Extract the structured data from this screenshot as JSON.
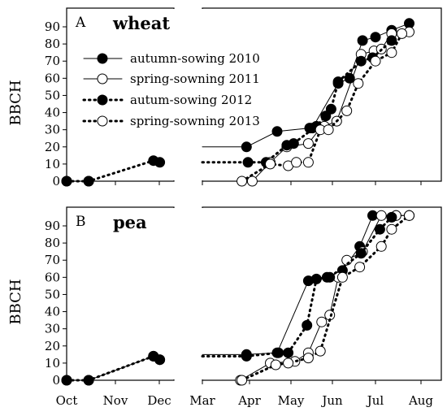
{
  "figure": {
    "ylabel": "BBCH",
    "x_ticks": [
      "Oct",
      "Nov",
      "Dec",
      "Mar",
      "Apr",
      "May",
      "Jun",
      "Jul",
      "Aug"
    ],
    "y_ticks": [
      "0",
      "10",
      "20",
      "30",
      "40",
      "50",
      "60",
      "70",
      "80",
      "90"
    ],
    "legend": [
      {
        "label": "autumn-sowing 2010",
        "style": "solid",
        "marker": "filled"
      },
      {
        "label": "spring-sowning 2011",
        "style": "solid",
        "marker": "open"
      },
      {
        "label": "autum-sowing 2012",
        "style": "dotted",
        "marker": "filled"
      },
      {
        "label": "spring-sowning 2013",
        "style": "dotted",
        "marker": "open"
      }
    ]
  },
  "chart_data": [
    {
      "type": "line",
      "panel": "A",
      "title": "wheat",
      "ylabel": "BBCH",
      "ylim": [
        0,
        95
      ],
      "x_axis": "date (month-day)",
      "series": [
        {
          "name": "autumn-sowing 2010",
          "style": "solid",
          "marker": "filled",
          "x": [
            "10-01",
            "10-15",
            "03-30",
            "04-21",
            "05-15",
            "05-17",
            "06-05",
            "06-13",
            "06-22",
            "07-01",
            "07-12",
            "07-24"
          ],
          "y": [
            0,
            0,
            20,
            29,
            31,
            31,
            57,
            60,
            82,
            84,
            88,
            92
          ]
        },
        {
          "name": "spring-sowning 2011",
          "style": "solid",
          "marker": "open",
          "x": [
            "04-03",
            "04-16",
            "04-28",
            "05-14",
            "05-23",
            "05-26",
            "06-04",
            "06-21",
            "06-30",
            "07-05",
            "07-12",
            "07-24"
          ],
          "y": [
            0,
            11,
            20,
            22,
            31,
            32,
            35,
            74,
            76,
            77,
            86,
            87
          ]
        },
        {
          "name": "autum-sowing 2012",
          "style": "dotted",
          "marker": "filled",
          "x": [
            "10-01",
            "10-15",
            "11-27",
            "12-02",
            "03-31",
            "04-13",
            "04-28",
            "05-03",
            "05-20",
            "05-27",
            "05-31",
            "06-05",
            "06-21",
            "06-29",
            "07-12"
          ],
          "y": [
            0,
            0,
            12,
            11,
            11,
            11,
            21,
            22,
            32,
            38,
            42,
            58,
            70,
            72,
            82
          ]
        },
        {
          "name": "spring-sowning 2013",
          "style": "dotted",
          "marker": "open",
          "x": [
            "03-27",
            "04-16",
            "04-29",
            "05-05",
            "05-14",
            "05-23",
            "05-29",
            "06-11",
            "06-19",
            "07-01",
            "07-12",
            "07-19"
          ],
          "y": [
            0,
            10,
            9,
            11,
            11,
            30,
            30,
            41,
            57,
            70,
            75,
            86
          ]
        }
      ]
    },
    {
      "type": "line",
      "panel": "B",
      "title": "pea",
      "ylabel": "BBCH",
      "ylim": [
        0,
        95
      ],
      "x_axis": "date (month-day)",
      "series": [
        {
          "name": "autumn-sowing 2010",
          "style": "solid",
          "marker": "filled",
          "x": [
            "10-01",
            "10-15",
            "11-27",
            "12-02",
            "03-30",
            "04-21",
            "05-14",
            "05-28",
            "06-08",
            "06-20",
            "06-29",
            "07-15",
            "07-24"
          ],
          "y": [
            0,
            0,
            14,
            12,
            15,
            16,
            58,
            60,
            64,
            78,
            96,
            96,
            96
          ]
        },
        {
          "name": "spring-sowning 2011",
          "style": "solid",
          "marker": "open",
          "x": [
            "03-26",
            "04-16",
            "05-04",
            "05-14",
            "05-24",
            "05-30",
            "06-05",
            "06-11",
            "06-22",
            "07-05",
            "07-15",
            "07-24"
          ],
          "y": [
            0,
            10,
            11,
            16,
            34,
            38,
            60,
            70,
            75,
            96,
            96,
            96
          ]
        },
        {
          "name": "autum-sowing 2012",
          "style": "dotted",
          "marker": "filled",
          "x": [
            "10-01",
            "10-15",
            "11-27",
            "12-02",
            "03-30",
            "04-22",
            "04-29",
            "05-13",
            "05-20",
            "05-30",
            "06-21",
            "07-04",
            "07-12"
          ],
          "y": [
            0,
            0,
            14,
            12,
            14,
            16,
            16,
            32,
            59,
            60,
            74,
            88,
            95
          ]
        },
        {
          "name": "spring-sowning 2013",
          "style": "dotted",
          "marker": "open",
          "x": [
            "03-27",
            "04-20",
            "04-29",
            "05-14",
            "05-23",
            "06-08",
            "06-20",
            "07-05",
            "07-12",
            "07-24"
          ],
          "y": [
            0,
            9,
            10,
            13,
            17,
            60,
            66,
            78,
            88,
            96
          ]
        }
      ]
    }
  ]
}
